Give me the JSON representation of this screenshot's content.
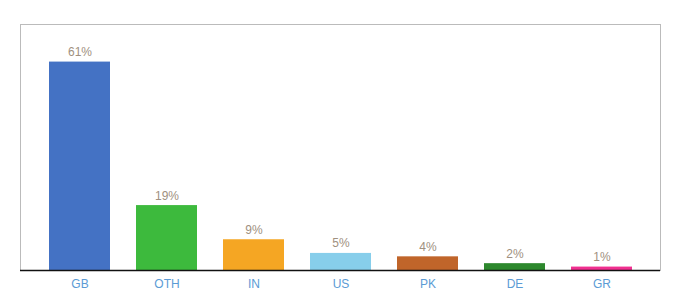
{
  "chart_data": {
    "type": "bar",
    "categories": [
      "GB",
      "OTH",
      "IN",
      "US",
      "PK",
      "DE",
      "GR"
    ],
    "values": [
      61,
      19,
      9,
      5,
      4,
      2,
      1
    ],
    "value_labels": [
      "61%",
      "19%",
      "9%",
      "5%",
      "4%",
      "2%",
      "1%"
    ],
    "colors": [
      "#4472c4",
      "#3dba3d",
      "#f5a623",
      "#87ceeb",
      "#c0652a",
      "#2d882d",
      "#f03090"
    ],
    "ylim": [
      0,
      72
    ],
    "data_labels": true,
    "tick_labels": "x",
    "grid": false
  }
}
